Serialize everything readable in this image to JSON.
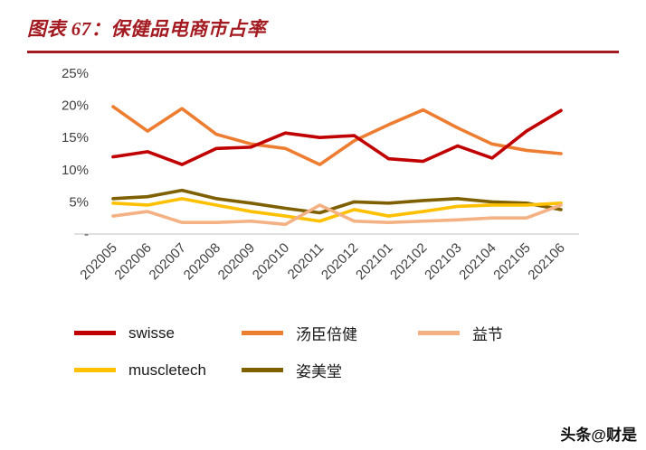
{
  "header": {
    "title": "图表 67：保健品电商市占率"
  },
  "colors": {
    "title_accent": "#a31a20",
    "rule": "#a31a20",
    "axis_line": "#bfbfbf",
    "tick_text": "#3f3f3f"
  },
  "watermark": {
    "text": "头条@财是"
  },
  "chart_data": {
    "type": "line",
    "title": "保健品电商市占率",
    "xlabel": "",
    "ylabel": "",
    "ylim": [
      0,
      25
    ],
    "grid": false,
    "legend_position": "bottom",
    "y_ticks": [
      "25%",
      "20%",
      "15%",
      "10%",
      "5%",
      "-"
    ],
    "x": [
      "202005",
      "202006",
      "202007",
      "202008",
      "202009",
      "202010",
      "202011",
      "202012",
      "202101",
      "202102",
      "202103",
      "202104",
      "202105",
      "202106"
    ],
    "series": [
      {
        "name": "swisse",
        "color": "#c00000",
        "values": [
          12.0,
          12.8,
          10.8,
          13.3,
          13.5,
          15.7,
          15.0,
          15.3,
          11.7,
          11.3,
          13.7,
          11.8,
          16.0,
          19.2
        ]
      },
      {
        "name": "汤臣倍健",
        "color": "#ed7d31",
        "values": [
          19.8,
          16.0,
          19.5,
          15.5,
          14.0,
          13.3,
          10.8,
          14.5,
          17.0,
          19.3,
          16.5,
          14.0,
          13.0,
          12.5
        ]
      },
      {
        "name": "益节",
        "color": "#f4b183",
        "values": [
          2.8,
          3.5,
          1.8,
          1.8,
          2.0,
          1.5,
          4.5,
          2.0,
          1.8,
          2.0,
          2.2,
          2.5,
          2.5,
          4.5
        ]
      },
      {
        "name": "muscletech",
        "color": "#ffc000",
        "values": [
          4.8,
          4.5,
          5.5,
          4.5,
          3.5,
          2.8,
          2.0,
          3.8,
          2.8,
          3.5,
          4.3,
          4.5,
          4.5,
          4.8
        ]
      },
      {
        "name": "姿美堂",
        "color": "#7f6000",
        "values": [
          5.5,
          5.8,
          6.8,
          5.5,
          4.8,
          4.0,
          3.3,
          5.0,
          4.8,
          5.2,
          5.5,
          5.0,
          4.8,
          3.8
        ]
      }
    ]
  }
}
